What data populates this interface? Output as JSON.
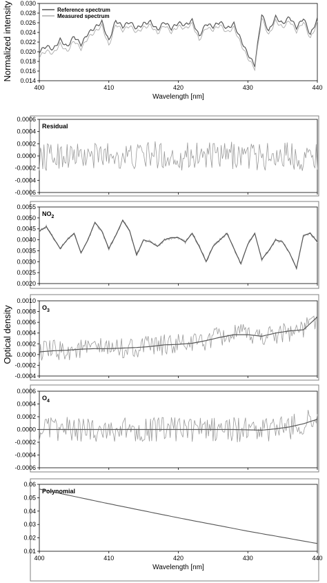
{
  "figure": {
    "ylabel_top": "Normalized intensity",
    "ylabel_middle": "Optical density",
    "colors": {
      "reference": "#555555",
      "measured": "#aaaaaa",
      "fit": "#555555",
      "noisy": "#999999",
      "frame": "#7f7f7f"
    }
  },
  "chart_data": [
    {
      "id": "intensity",
      "type": "line",
      "xlabel": "Wavelength [nm]",
      "ylabel": "Normalized intensity",
      "xlim": [
        400,
        440
      ],
      "ylim": [
        0.014,
        0.03
      ],
      "xticks": [
        "400",
        "410",
        "420",
        "430",
        "440"
      ],
      "yticks": [
        "0.014",
        "0.016",
        "0.018",
        "0.020",
        "0.022",
        "0.024",
        "0.026",
        "0.028",
        "0.030"
      ],
      "legend_position": "top-left",
      "grid": false,
      "series": [
        {
          "name": "Reference spectrum",
          "x": [
            400,
            401,
            402,
            403,
            404,
            405,
            406,
            407,
            408,
            409,
            410,
            411,
            412,
            413,
            414,
            415,
            416,
            417,
            418,
            419,
            420,
            421,
            422,
            423,
            424,
            425,
            426,
            427,
            428,
            429,
            430,
            431,
            432,
            433,
            434,
            435,
            436,
            437,
            438,
            439,
            440
          ],
          "y": [
            0.02,
            0.0212,
            0.0205,
            0.0225,
            0.021,
            0.0232,
            0.0215,
            0.0238,
            0.025,
            0.0262,
            0.0222,
            0.0265,
            0.0252,
            0.0262,
            0.0248,
            0.0258,
            0.0262,
            0.0245,
            0.0262,
            0.0248,
            0.026,
            0.0255,
            0.0265,
            0.0232,
            0.0258,
            0.0252,
            0.0262,
            0.0248,
            0.0258,
            0.0225,
            0.0195,
            0.0172,
            0.0278,
            0.0242,
            0.0272,
            0.0258,
            0.0272,
            0.025,
            0.027,
            0.0235,
            0.0268
          ]
        },
        {
          "name": "Measured spectrum",
          "x": [
            400,
            401,
            402,
            403,
            404,
            405,
            406,
            407,
            408,
            409,
            410,
            411,
            412,
            413,
            414,
            415,
            416,
            417,
            418,
            419,
            420,
            421,
            422,
            423,
            424,
            425,
            426,
            427,
            428,
            429,
            430,
            431,
            432,
            433,
            434,
            435,
            436,
            437,
            438,
            439,
            440
          ],
          "y": [
            0.019,
            0.0202,
            0.0196,
            0.0216,
            0.02,
            0.0223,
            0.0206,
            0.0229,
            0.0241,
            0.0254,
            0.0212,
            0.0257,
            0.0244,
            0.0254,
            0.024,
            0.025,
            0.0255,
            0.0238,
            0.0255,
            0.024,
            0.0253,
            0.0248,
            0.0258,
            0.0224,
            0.025,
            0.0245,
            0.0255,
            0.024,
            0.025,
            0.0216,
            0.0187,
            0.0165,
            0.027,
            0.0234,
            0.0264,
            0.025,
            0.0264,
            0.0242,
            0.0262,
            0.0227,
            0.026
          ]
        }
      ]
    },
    {
      "id": "residual",
      "type": "line",
      "label": "Residual",
      "xlim": [
        400,
        440
      ],
      "ylim": [
        -0.0006,
        0.0006
      ],
      "yticks": [
        "0.0006",
        "0.0004",
        "0.0002",
        "0.0000",
        "-0.0002",
        "-0.0004",
        "-0.0006"
      ],
      "series": [
        {
          "x": [
            400,
            401,
            402,
            403,
            404,
            405,
            406,
            407,
            408,
            409,
            410,
            411,
            412,
            413,
            414,
            415,
            416,
            417,
            418,
            419,
            420,
            421,
            422,
            423,
            424,
            425,
            426,
            427,
            428,
            429,
            430,
            431,
            432,
            433,
            434,
            435,
            436,
            437,
            438,
            439,
            440
          ],
          "y": [
            0.0,
            0.0001,
            -0.0001,
            0.0001,
            -0.0001,
            0.0,
            0.0001,
            -0.0001,
            0.0001,
            0.0,
            -0.0001,
            0.0001,
            0.0,
            0.0,
            -0.0001,
            0.0001,
            0.0,
            -0.0001,
            0.0001,
            0.0,
            -0.0001,
            0.0,
            0.0001,
            -0.0001,
            0.0,
            0.0001,
            -0.0001,
            0.0,
            0.0001,
            0.0,
            -0.0001,
            0.0001,
            0.0,
            -0.0001,
            0.0001,
            0.0,
            -0.0001,
            0.0001,
            0.0,
            -0.0001,
            0.0
          ]
        }
      ]
    },
    {
      "id": "no2",
      "type": "line",
      "label": "NO2",
      "xlim": [
        400,
        440
      ],
      "ylim": [
        0.002,
        0.0055
      ],
      "yticks": [
        "0.0055",
        "0.0050",
        "0.0045",
        "0.0040",
        "0.0035",
        "0.0030",
        "0.0025",
        "0.0020"
      ],
      "series": [
        {
          "x": [
            400,
            401,
            402,
            403,
            404,
            405,
            406,
            407,
            408,
            409,
            410,
            411,
            412,
            413,
            414,
            415,
            416,
            417,
            418,
            419,
            420,
            421,
            422,
            423,
            424,
            425,
            426,
            427,
            428,
            429,
            430,
            431,
            432,
            433,
            434,
            435,
            436,
            437,
            438,
            439,
            440
          ],
          "y": [
            0.0044,
            0.0046,
            0.0041,
            0.0036,
            0.004,
            0.0043,
            0.0034,
            0.004,
            0.0048,
            0.0044,
            0.0036,
            0.0042,
            0.0049,
            0.0044,
            0.0033,
            0.004,
            0.0039,
            0.0037,
            0.004,
            0.0041,
            0.0041,
            0.0039,
            0.0043,
            0.0037,
            0.003,
            0.0037,
            0.004,
            0.0043,
            0.0036,
            0.0029,
            0.0038,
            0.0043,
            0.0031,
            0.0035,
            0.004,
            0.0039,
            0.0034,
            0.0027,
            0.0042,
            0.0043,
            0.0039
          ]
        }
      ]
    },
    {
      "id": "o3",
      "type": "line",
      "label": "O3",
      "xlim": [
        400,
        440
      ],
      "ylim": [
        -0.0004,
        0.001
      ],
      "yticks": [
        "0.0010",
        "0.0008",
        "0.0006",
        "0.0004",
        "0.0002",
        "0.0000",
        "-0.0002",
        "-0.0004"
      ],
      "series": [
        {
          "x": [
            400,
            402,
            404,
            406,
            408,
            410,
            412,
            414,
            416,
            418,
            420,
            422,
            424,
            426,
            428,
            430,
            432,
            434,
            436,
            438,
            440
          ],
          "y": [
            5e-05,
            7e-05,
            8e-05,
            0.0001,
            0.00011,
            0.00011,
            0.00012,
            0.00013,
            0.00015,
            0.00018,
            0.00019,
            0.00021,
            0.00026,
            0.00032,
            0.00037,
            0.00037,
            0.00034,
            0.0004,
            0.00044,
            0.00046,
            0.0007
          ]
        }
      ]
    },
    {
      "id": "o4",
      "type": "line",
      "label": "O4",
      "xlim": [
        400,
        440
      ],
      "ylim": [
        -0.0006,
        0.0006
      ],
      "yticks": [
        "0.0006",
        "0.0004",
        "0.0002",
        "0.0000",
        "-0.0002",
        "-0.0004",
        "-0.0006"
      ],
      "series": [
        {
          "x": [
            400,
            404,
            408,
            412,
            416,
            420,
            424,
            428,
            432,
            434,
            436,
            438,
            440
          ],
          "y": [
            0.0,
            0.0,
            0.0,
            0.0,
            0.0,
            0.0,
            0.0,
            0.0,
            -1e-05,
            1e-05,
            4e-05,
            9e-05,
            0.00016
          ]
        }
      ]
    },
    {
      "id": "polynomial",
      "type": "line",
      "label": "Polynomial",
      "xlabel": "Wavelength [nm]",
      "xlim": [
        400,
        440
      ],
      "ylim": [
        0.01,
        0.06
      ],
      "xticks": [
        "400",
        "410",
        "420",
        "430",
        "440"
      ],
      "yticks": [
        "0.06",
        "0.05",
        "0.04",
        "0.03",
        "0.02",
        "0.01"
      ],
      "series": [
        {
          "x": [
            400,
            410,
            420,
            430,
            440
          ],
          "y": [
            0.0565,
            0.0455,
            0.035,
            0.025,
            0.0158
          ]
        }
      ]
    }
  ]
}
